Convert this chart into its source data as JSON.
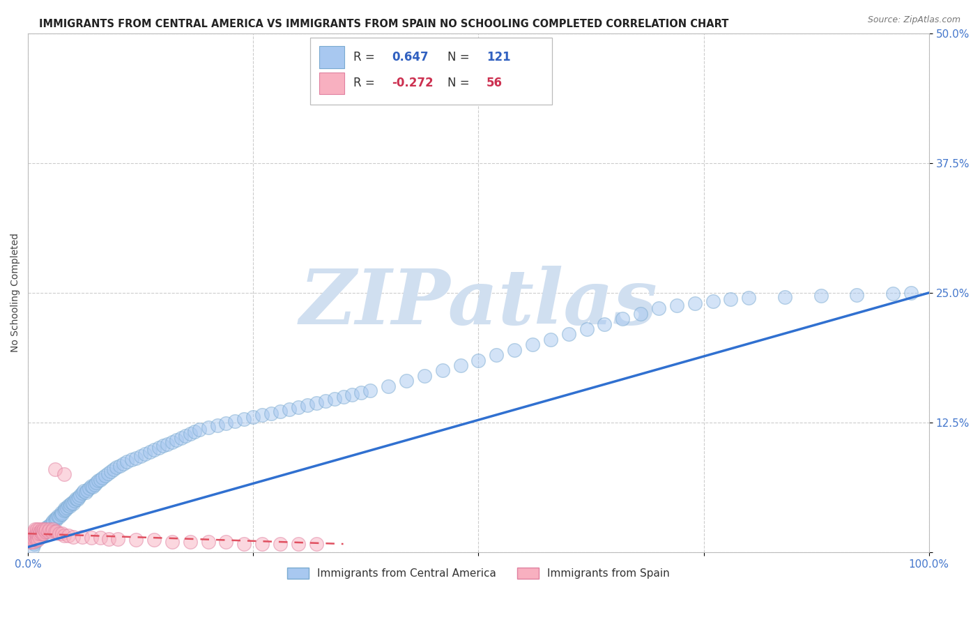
{
  "title": "IMMIGRANTS FROM CENTRAL AMERICA VS IMMIGRANTS FROM SPAIN NO SCHOOLING COMPLETED CORRELATION CHART",
  "source": "Source: ZipAtlas.com",
  "ylabel": "No Schooling Completed",
  "xlim": [
    0.0,
    1.0
  ],
  "ylim": [
    0.0,
    0.5
  ],
  "yticks": [
    0.0,
    0.125,
    0.25,
    0.375,
    0.5
  ],
  "xticks": [
    0.0,
    0.25,
    0.5,
    0.75,
    1.0
  ],
  "xtick_labels": [
    "0.0%",
    "",
    "",
    "",
    "100.0%"
  ],
  "ytick_labels": [
    "",
    "12.5%",
    "25.0%",
    "37.5%",
    "50.0%"
  ],
  "blue_R": "0.647",
  "blue_N": "121",
  "pink_R": "-0.272",
  "pink_N": "56",
  "blue_color": "#a8c8f0",
  "blue_edge_color": "#7aaad0",
  "pink_color": "#f8b0c0",
  "pink_edge_color": "#e080a0",
  "blue_line_color": "#3070d0",
  "pink_line_color": "#e05060",
  "watermark": "ZIPatlas",
  "watermark_color": "#d0dff0",
  "legend_label_blue": "Immigrants from Central America",
  "legend_label_pink": "Immigrants from Spain",
  "blue_scatter_x": [
    0.005,
    0.007,
    0.008,
    0.01,
    0.012,
    0.013,
    0.015,
    0.016,
    0.017,
    0.018,
    0.02,
    0.021,
    0.022,
    0.023,
    0.025,
    0.026,
    0.027,
    0.028,
    0.03,
    0.031,
    0.032,
    0.033,
    0.035,
    0.036,
    0.037,
    0.038,
    0.04,
    0.041,
    0.042,
    0.043,
    0.045,
    0.046,
    0.047,
    0.049,
    0.05,
    0.052,
    0.053,
    0.055,
    0.056,
    0.058,
    0.06,
    0.062,
    0.064,
    0.066,
    0.068,
    0.07,
    0.072,
    0.074,
    0.076,
    0.078,
    0.08,
    0.083,
    0.086,
    0.089,
    0.092,
    0.095,
    0.098,
    0.102,
    0.106,
    0.11,
    0.115,
    0.12,
    0.125,
    0.13,
    0.135,
    0.14,
    0.145,
    0.15,
    0.155,
    0.16,
    0.165,
    0.17,
    0.175,
    0.18,
    0.185,
    0.19,
    0.2,
    0.21,
    0.22,
    0.23,
    0.24,
    0.25,
    0.26,
    0.27,
    0.28,
    0.29,
    0.3,
    0.31,
    0.32,
    0.33,
    0.34,
    0.35,
    0.36,
    0.37,
    0.38,
    0.4,
    0.42,
    0.44,
    0.46,
    0.48,
    0.5,
    0.52,
    0.54,
    0.56,
    0.58,
    0.6,
    0.62,
    0.64,
    0.66,
    0.68,
    0.7,
    0.72,
    0.74,
    0.76,
    0.78,
    0.8,
    0.84,
    0.88,
    0.92,
    0.96,
    0.98
  ],
  "blue_scatter_y": [
    0.005,
    0.008,
    0.01,
    0.012,
    0.015,
    0.014,
    0.016,
    0.018,
    0.02,
    0.019,
    0.022,
    0.024,
    0.025,
    0.023,
    0.026,
    0.028,
    0.027,
    0.03,
    0.032,
    0.031,
    0.033,
    0.035,
    0.034,
    0.036,
    0.038,
    0.037,
    0.04,
    0.042,
    0.041,
    0.043,
    0.045,
    0.044,
    0.046,
    0.048,
    0.047,
    0.05,
    0.052,
    0.051,
    0.053,
    0.055,
    0.057,
    0.059,
    0.058,
    0.06,
    0.062,
    0.064,
    0.063,
    0.065,
    0.067,
    0.069,
    0.07,
    0.072,
    0.074,
    0.076,
    0.078,
    0.08,
    0.082,
    0.083,
    0.085,
    0.087,
    0.089,
    0.091,
    0.093,
    0.095,
    0.097,
    0.099,
    0.101,
    0.103,
    0.104,
    0.106,
    0.108,
    0.11,
    0.112,
    0.114,
    0.116,
    0.118,
    0.12,
    0.122,
    0.124,
    0.126,
    0.128,
    0.13,
    0.132,
    0.134,
    0.136,
    0.138,
    0.14,
    0.142,
    0.144,
    0.146,
    0.148,
    0.15,
    0.152,
    0.154,
    0.156,
    0.16,
    0.165,
    0.17,
    0.175,
    0.18,
    0.185,
    0.19,
    0.195,
    0.2,
    0.205,
    0.21,
    0.215,
    0.22,
    0.225,
    0.23,
    0.235,
    0.238,
    0.24,
    0.242,
    0.244,
    0.245,
    0.246,
    0.247,
    0.248,
    0.249,
    0.25
  ],
  "pink_scatter_x": [
    0.003,
    0.004,
    0.005,
    0.005,
    0.006,
    0.006,
    0.007,
    0.007,
    0.008,
    0.008,
    0.009,
    0.009,
    0.01,
    0.01,
    0.011,
    0.011,
    0.012,
    0.012,
    0.013,
    0.014,
    0.015,
    0.015,
    0.016,
    0.017,
    0.018,
    0.019,
    0.02,
    0.022,
    0.024,
    0.026,
    0.028,
    0.03,
    0.032,
    0.035,
    0.038,
    0.04,
    0.045,
    0.05,
    0.06,
    0.07,
    0.08,
    0.09,
    0.1,
    0.12,
    0.14,
    0.16,
    0.18,
    0.2,
    0.22,
    0.24,
    0.26,
    0.28,
    0.3,
    0.32,
    0.03,
    0.04
  ],
  "pink_scatter_y": [
    0.01,
    0.01,
    0.012,
    0.015,
    0.01,
    0.018,
    0.012,
    0.02,
    0.015,
    0.022,
    0.012,
    0.018,
    0.015,
    0.022,
    0.012,
    0.018,
    0.015,
    0.022,
    0.018,
    0.02,
    0.018,
    0.022,
    0.02,
    0.018,
    0.022,
    0.02,
    0.022,
    0.02,
    0.022,
    0.02,
    0.022,
    0.02,
    0.02,
    0.018,
    0.018,
    0.016,
    0.016,
    0.015,
    0.015,
    0.014,
    0.014,
    0.013,
    0.013,
    0.012,
    0.012,
    0.01,
    0.01,
    0.01,
    0.01,
    0.008,
    0.008,
    0.008,
    0.008,
    0.008,
    0.08,
    0.075
  ],
  "blue_line_x": [
    0.0,
    1.0
  ],
  "blue_line_y": [
    0.005,
    0.25
  ],
  "pink_line_x": [
    0.0,
    0.35
  ],
  "pink_line_y": [
    0.018,
    0.008
  ],
  "background_color": "#ffffff",
  "plot_bg_color": "#ffffff",
  "grid_color": "#cccccc",
  "title_fontsize": 10.5,
  "axis_label_fontsize": 10,
  "tick_fontsize": 11,
  "tick_color": "#4477cc",
  "scatter_size": 200,
  "scatter_alpha": 0.5,
  "scatter_linewidth": 1.0
}
